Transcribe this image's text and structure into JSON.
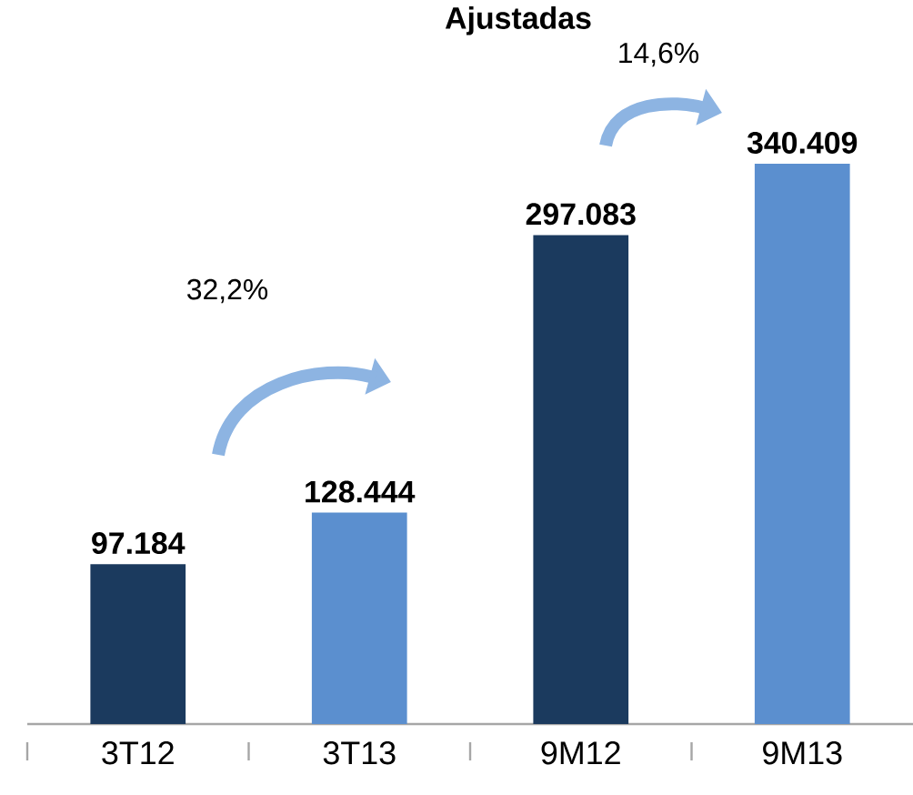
{
  "chart_data": {
    "type": "bar",
    "title": "Ajustadas",
    "categories": [
      "3T12",
      "3T13",
      "9M12",
      "9M13"
    ],
    "values": [
      97184,
      128444,
      297083,
      340409
    ],
    "value_labels": [
      "97.184",
      "128.444",
      "297.083",
      "340.409"
    ],
    "colors": [
      "#1b3a5e",
      "#5b8fcf",
      "#1b3a5e",
      "#5b8fcf"
    ],
    "annotations": [
      "32,2%",
      "14,6%"
    ]
  }
}
